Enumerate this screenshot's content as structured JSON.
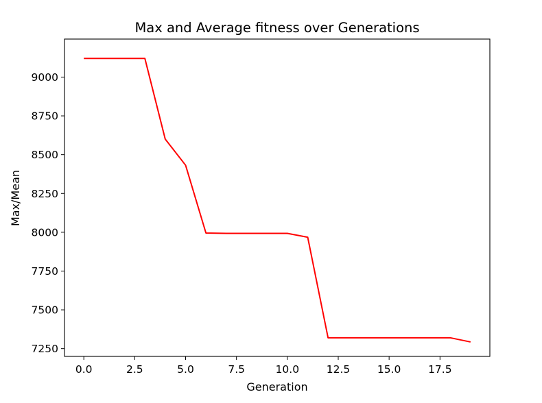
{
  "chart_data": {
    "type": "line",
    "title": "Max and Average fitness over Generations",
    "xlabel": "Generation",
    "ylabel": "Max/Mean",
    "xlim": [
      -0.95,
      19.95
    ],
    "ylim": [
      7200,
      9245
    ],
    "grid": false,
    "xticks": [
      0.0,
      2.5,
      5.0,
      7.5,
      10.0,
      12.5,
      15.0,
      17.5
    ],
    "xtick_labels": [
      "0.0",
      "2.5",
      "5.0",
      "7.5",
      "10.0",
      "12.5",
      "15.0",
      "17.5"
    ],
    "yticks": [
      7250,
      7500,
      7750,
      8000,
      8250,
      8500,
      8750,
      9000
    ],
    "ytick_labels": [
      "7250",
      "7500",
      "7750",
      "8000",
      "8250",
      "8500",
      "8750",
      "9000"
    ],
    "series": [
      {
        "color": "#ff0000",
        "x": [
          0,
          1,
          2,
          3,
          4,
          5,
          6,
          7,
          8,
          9,
          10,
          11,
          12,
          13,
          14,
          15,
          16,
          17,
          18,
          19
        ],
        "y": [
          9120,
          9120,
          9120,
          9120,
          8600,
          8432,
          7995,
          7993,
          7993,
          7993,
          7993,
          7968,
          7320,
          7320,
          7320,
          7320,
          7320,
          7320,
          7320,
          7293
        ]
      }
    ]
  }
}
